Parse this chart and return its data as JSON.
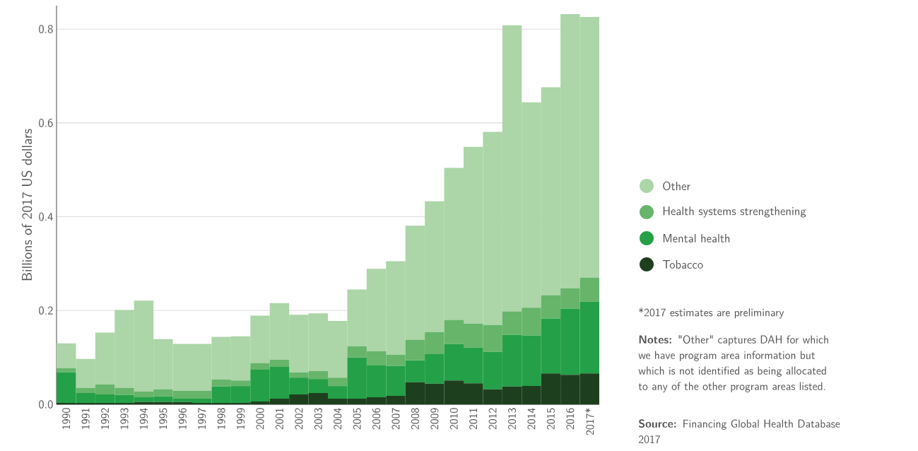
{
  "chart_data": {
    "type": "bar",
    "stacked": true,
    "ylabel": "Billions of 2017 US dollars",
    "categories": [
      "1990",
      "1991",
      "1992",
      "1993",
      "1994",
      "1995",
      "1996",
      "1997",
      "1998",
      "1999",
      "2000",
      "2001",
      "2002",
      "2003",
      "2004",
      "2005",
      "2006",
      "2007",
      "2008",
      "2009",
      "2010",
      "2011",
      "2012",
      "2013",
      "2014",
      "2015",
      "2016",
      "2017*"
    ],
    "series": [
      {
        "name": "Tobacco",
        "color": "#1e3f1e",
        "values": [
          0.003,
          0.003,
          0.003,
          0.003,
          0.005,
          0.005,
          0.005,
          0.003,
          0.003,
          0.003,
          0.006,
          0.012,
          0.021,
          0.024,
          0.012,
          0.012,
          0.015,
          0.018,
          0.047,
          0.044,
          0.051,
          0.045,
          0.032,
          0.038,
          0.039,
          0.066,
          0.063,
          0.066
        ]
      },
      {
        "name": "Mental health",
        "color": "#24a048",
        "values": [
          0.065,
          0.021,
          0.018,
          0.017,
          0.01,
          0.012,
          0.007,
          0.009,
          0.035,
          0.036,
          0.068,
          0.068,
          0.036,
          0.03,
          0.027,
          0.088,
          0.068,
          0.064,
          0.047,
          0.063,
          0.078,
          0.076,
          0.08,
          0.11,
          0.108,
          0.117,
          0.141,
          0.153
        ]
      },
      {
        "name": "Health systems strengthening",
        "color": "#66b56a",
        "values": [
          0.009,
          0.011,
          0.021,
          0.015,
          0.012,
          0.015,
          0.017,
          0.017,
          0.015,
          0.012,
          0.014,
          0.015,
          0.011,
          0.017,
          0.018,
          0.024,
          0.03,
          0.024,
          0.044,
          0.047,
          0.051,
          0.051,
          0.057,
          0.05,
          0.059,
          0.05,
          0.043,
          0.051
        ]
      },
      {
        "name": "Other",
        "color": "#acd5a8",
        "values": [
          0.053,
          0.062,
          0.111,
          0.166,
          0.194,
          0.107,
          0.1,
          0.1,
          0.091,
          0.094,
          0.101,
          0.121,
          0.123,
          0.123,
          0.121,
          0.121,
          0.176,
          0.199,
          0.243,
          0.279,
          0.324,
          0.377,
          0.412,
          0.61,
          0.438,
          0.443,
          0.585,
          0.556
        ]
      }
    ],
    "ylim": [
      0,
      0.85
    ],
    "yticks": [
      {
        "value": 0,
        "label": "0.0"
      },
      {
        "value": 0.2,
        "label": "0.2"
      },
      {
        "value": 0.4,
        "label": "0.4"
      },
      {
        "value": 0.6,
        "label": "0.6"
      },
      {
        "value": 0.8,
        "label": "0.8"
      }
    ],
    "grid": "y",
    "legend": "right",
    "annotations": [
      "*2017 estimates are preliminary",
      "**Notes:** \"Other\" captures DAH for which we have program area information but which is not identified as being allocated to any of the other program areas listed.",
      "**Source:** Financing Global Health Database 2017"
    ]
  }
}
